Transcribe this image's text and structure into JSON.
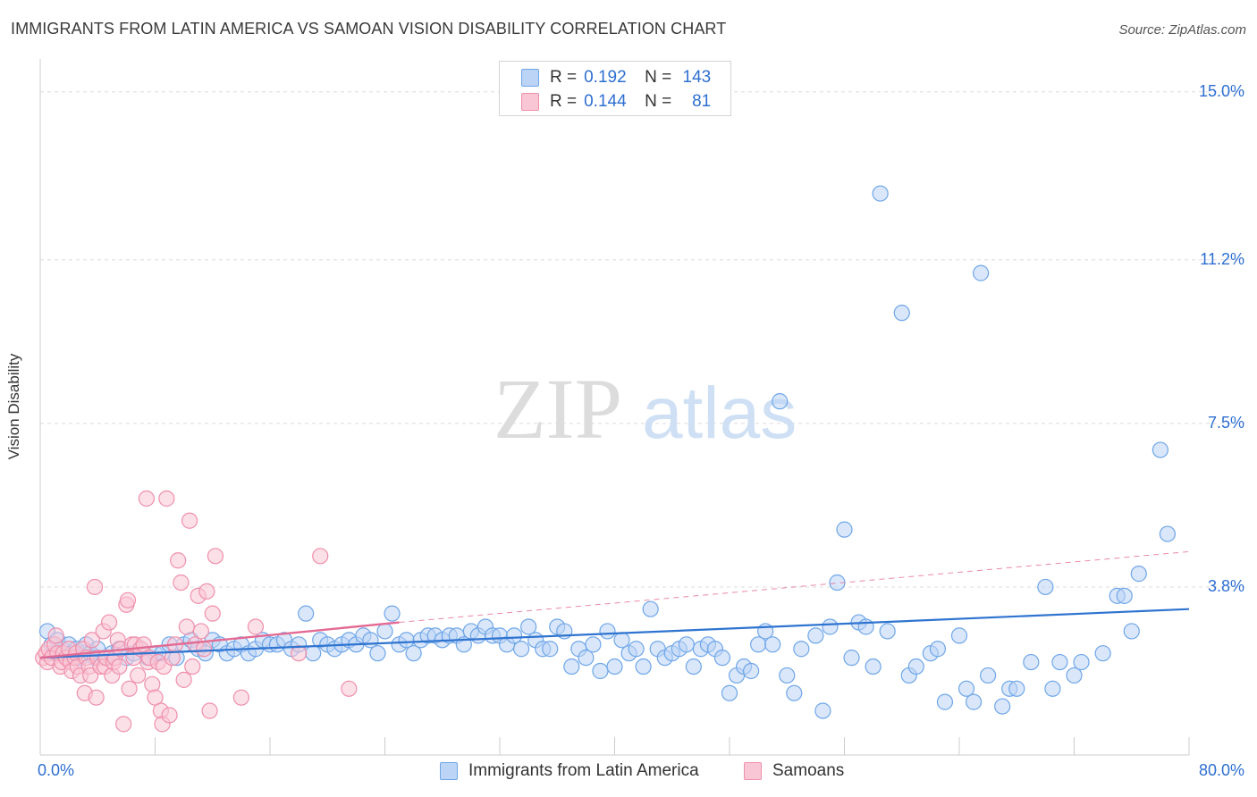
{
  "title": "IMMIGRANTS FROM LATIN AMERICA VS SAMOAN VISION DISABILITY CORRELATION CHART",
  "source": "Source: ZipAtlas.com",
  "watermark": {
    "zip": "ZIP",
    "atlas": "atlas"
  },
  "legend": {
    "rows": [
      {
        "r_label": "R = ",
        "r_value": "0.192",
        "n_label": "N = ",
        "n_value": "143",
        "color": "#6ea6e8",
        "fill": "#bcd4f5"
      },
      {
        "r_label": "R = ",
        "r_value": "0.144",
        "n_label": "N = ",
        "n_value": "81",
        "color": "#ef8fab",
        "fill": "#f9c6d6"
      }
    ]
  },
  "bottom_legend": [
    {
      "label": "Immigrants from Latin America",
      "color": "#6ea6e8",
      "fill": "#bcd4f5"
    },
    {
      "label": "Samoans",
      "color": "#ef8fab",
      "fill": "#f9c6d6"
    }
  ],
  "chart_data": {
    "type": "scatter",
    "title": "IMMIGRANTS FROM LATIN AMERICA VS SAMOAN VISION DISABILITY CORRELATION CHART",
    "xlabel": "",
    "ylabel": "Vision Disability",
    "x_unit": "%",
    "xlim": [
      0,
      80
    ],
    "ylim": [
      0,
      15.5
    ],
    "x_tick_labels": [
      "0.0%",
      "80.0%"
    ],
    "y_ticks": [
      3.8,
      7.5,
      11.2,
      15.0
    ],
    "y_tick_labels": [
      "3.8%",
      "7.5%",
      "11.2%",
      "15.0%"
    ],
    "grid": true,
    "legend_position": "top-center",
    "series": [
      {
        "name": "Immigrants from Latin America",
        "color": "#6ea6e8",
        "trend": {
          "x": [
            0,
            80
          ],
          "y": [
            2.2,
            3.3
          ],
          "style": "solid",
          "color": "#2f74d0"
        },
        "points": [
          [
            0.5,
            2.8
          ],
          [
            0.8,
            2.5
          ],
          [
            1.0,
            2.3
          ],
          [
            1.2,
            2.6
          ],
          [
            1.5,
            2.4
          ],
          [
            1.8,
            2.2
          ],
          [
            2.0,
            2.5
          ],
          [
            2.2,
            2.3
          ],
          [
            2.5,
            2.4
          ],
          [
            2.8,
            2.2
          ],
          [
            3.0,
            2.3
          ],
          [
            3.2,
            2.5
          ],
          [
            3.5,
            2.3
          ],
          [
            3.8,
            2.2
          ],
          [
            4.0,
            2.4
          ],
          [
            4.5,
            2.2
          ],
          [
            5.0,
            2.3
          ],
          [
            5.5,
            2.4
          ],
          [
            6.0,
            2.2
          ],
          [
            6.5,
            2.3
          ],
          [
            7.0,
            2.4
          ],
          [
            7.5,
            2.2
          ],
          [
            8.0,
            2.3
          ],
          [
            8.5,
            2.3
          ],
          [
            9.0,
            2.5
          ],
          [
            9.5,
            2.2
          ],
          [
            10.0,
            2.5
          ],
          [
            10.5,
            2.6
          ],
          [
            11.0,
            2.4
          ],
          [
            11.5,
            2.3
          ],
          [
            12.0,
            2.6
          ],
          [
            12.5,
            2.5
          ],
          [
            13.0,
            2.3
          ],
          [
            13.5,
            2.4
          ],
          [
            14.0,
            2.5
          ],
          [
            14.5,
            2.3
          ],
          [
            15.0,
            2.4
          ],
          [
            15.5,
            2.6
          ],
          [
            16.0,
            2.5
          ],
          [
            16.5,
            2.5
          ],
          [
            17.0,
            2.6
          ],
          [
            17.5,
            2.4
          ],
          [
            18.0,
            2.5
          ],
          [
            18.5,
            3.2
          ],
          [
            19.0,
            2.3
          ],
          [
            19.5,
            2.6
          ],
          [
            20.0,
            2.5
          ],
          [
            20.5,
            2.4
          ],
          [
            21.0,
            2.5
          ],
          [
            21.5,
            2.6
          ],
          [
            22.0,
            2.5
          ],
          [
            22.5,
            2.7
          ],
          [
            23.0,
            2.6
          ],
          [
            23.5,
            2.3
          ],
          [
            24.0,
            2.8
          ],
          [
            24.5,
            3.2
          ],
          [
            25.0,
            2.5
          ],
          [
            25.5,
            2.6
          ],
          [
            26.0,
            2.3
          ],
          [
            26.5,
            2.6
          ],
          [
            27.0,
            2.7
          ],
          [
            27.5,
            2.7
          ],
          [
            28.0,
            2.6
          ],
          [
            28.5,
            2.7
          ],
          [
            29.0,
            2.7
          ],
          [
            29.5,
            2.5
          ],
          [
            30.0,
            2.8
          ],
          [
            30.5,
            2.7
          ],
          [
            31.0,
            2.9
          ],
          [
            31.5,
            2.7
          ],
          [
            32.0,
            2.7
          ],
          [
            32.5,
            2.5
          ],
          [
            33.0,
            2.7
          ],
          [
            33.5,
            2.4
          ],
          [
            34.0,
            2.9
          ],
          [
            34.5,
            2.6
          ],
          [
            35.0,
            2.4
          ],
          [
            35.5,
            2.4
          ],
          [
            36.0,
            2.9
          ],
          [
            36.5,
            2.8
          ],
          [
            37.0,
            2.0
          ],
          [
            37.5,
            2.4
          ],
          [
            38.0,
            2.2
          ],
          [
            38.5,
            2.5
          ],
          [
            39.0,
            1.9
          ],
          [
            39.5,
            2.8
          ],
          [
            40.0,
            2.0
          ],
          [
            40.5,
            2.6
          ],
          [
            41.0,
            2.3
          ],
          [
            41.5,
            2.4
          ],
          [
            42.0,
            2.0
          ],
          [
            42.5,
            3.3
          ],
          [
            43.0,
            2.4
          ],
          [
            43.5,
            2.2
          ],
          [
            44.0,
            2.3
          ],
          [
            44.5,
            2.4
          ],
          [
            45.0,
            2.5
          ],
          [
            45.5,
            2.0
          ],
          [
            46.0,
            2.4
          ],
          [
            46.5,
            2.5
          ],
          [
            47.0,
            2.4
          ],
          [
            47.5,
            2.2
          ],
          [
            48.0,
            1.4
          ],
          [
            48.5,
            1.8
          ],
          [
            49.0,
            2.0
          ],
          [
            49.5,
            1.9
          ],
          [
            50.0,
            2.5
          ],
          [
            50.5,
            2.8
          ],
          [
            51.0,
            2.5
          ],
          [
            51.5,
            8.0
          ],
          [
            52.0,
            1.8
          ],
          [
            52.5,
            1.4
          ],
          [
            53.0,
            2.4
          ],
          [
            54.0,
            2.7
          ],
          [
            54.5,
            1.0
          ],
          [
            55.0,
            2.9
          ],
          [
            55.5,
            3.9
          ],
          [
            56.0,
            5.1
          ],
          [
            56.5,
            2.2
          ],
          [
            57.0,
            3.0
          ],
          [
            57.5,
            2.9
          ],
          [
            58.0,
            2.0
          ],
          [
            58.5,
            12.7
          ],
          [
            59.0,
            2.8
          ],
          [
            60.0,
            10.0
          ],
          [
            60.5,
            1.8
          ],
          [
            61.0,
            2.0
          ],
          [
            62.0,
            2.3
          ],
          [
            62.5,
            2.4
          ],
          [
            63.0,
            1.2
          ],
          [
            64.0,
            2.7
          ],
          [
            64.5,
            1.5
          ],
          [
            65.0,
            1.2
          ],
          [
            65.5,
            10.9
          ],
          [
            66.0,
            1.8
          ],
          [
            67.0,
            1.1
          ],
          [
            67.5,
            1.5
          ],
          [
            68.0,
            1.5
          ],
          [
            69.0,
            2.1
          ],
          [
            70.0,
            3.8
          ],
          [
            70.5,
            1.5
          ],
          [
            71.0,
            2.1
          ],
          [
            72.0,
            1.8
          ],
          [
            72.5,
            2.1
          ],
          [
            74.0,
            2.3
          ],
          [
            75.0,
            3.6
          ],
          [
            75.5,
            3.6
          ],
          [
            76.0,
            2.8
          ],
          [
            76.5,
            4.1
          ],
          [
            78.0,
            6.9
          ],
          [
            78.5,
            5.0
          ]
        ]
      },
      {
        "name": "Samoans",
        "color": "#ef8fab",
        "trend": {
          "x": [
            0,
            25
          ],
          "y": [
            2.2,
            3.0
          ],
          "style": "solid",
          "color": "#e36a93",
          "ext": {
            "x": [
              25,
              80
            ],
            "y": [
              3.0,
              4.6
            ],
            "style": "dashed"
          }
        },
        "points": [
          [
            0.2,
            2.2
          ],
          [
            0.4,
            2.3
          ],
          [
            0.5,
            2.1
          ],
          [
            0.6,
            2.4
          ],
          [
            0.8,
            2.2
          ],
          [
            1.0,
            2.5
          ],
          [
            1.1,
            2.7
          ],
          [
            1.2,
            2.3
          ],
          [
            1.4,
            2.0
          ],
          [
            1.5,
            2.1
          ],
          [
            1.6,
            2.3
          ],
          [
            1.8,
            2.2
          ],
          [
            2.0,
            2.4
          ],
          [
            2.1,
            2.1
          ],
          [
            2.2,
            1.9
          ],
          [
            2.4,
            2.2
          ],
          [
            2.5,
            2.3
          ],
          [
            2.6,
            2.0
          ],
          [
            2.8,
            1.8
          ],
          [
            3.0,
            2.4
          ],
          [
            3.1,
            1.4
          ],
          [
            3.2,
            2.2
          ],
          [
            3.4,
            2.0
          ],
          [
            3.5,
            1.8
          ],
          [
            3.6,
            2.6
          ],
          [
            3.8,
            3.8
          ],
          [
            3.9,
            1.3
          ],
          [
            4.0,
            2.2
          ],
          [
            4.2,
            2.0
          ],
          [
            4.4,
            2.8
          ],
          [
            4.5,
            2.0
          ],
          [
            4.6,
            2.2
          ],
          [
            4.8,
            3.0
          ],
          [
            5.0,
            1.8
          ],
          [
            5.1,
            2.1
          ],
          [
            5.2,
            2.2
          ],
          [
            5.4,
            2.6
          ],
          [
            5.5,
            2.0
          ],
          [
            5.6,
            2.4
          ],
          [
            5.8,
            0.7
          ],
          [
            6.0,
            3.4
          ],
          [
            6.1,
            3.5
          ],
          [
            6.2,
            1.5
          ],
          [
            6.4,
            2.5
          ],
          [
            6.5,
            2.2
          ],
          [
            6.6,
            2.5
          ],
          [
            6.8,
            1.8
          ],
          [
            7.0,
            2.4
          ],
          [
            7.2,
            2.5
          ],
          [
            7.4,
            5.8
          ],
          [
            7.5,
            2.1
          ],
          [
            7.6,
            2.2
          ],
          [
            7.8,
            1.6
          ],
          [
            8.0,
            1.3
          ],
          [
            8.2,
            2.1
          ],
          [
            8.4,
            1.0
          ],
          [
            8.5,
            0.7
          ],
          [
            8.6,
            2.0
          ],
          [
            8.8,
            5.8
          ],
          [
            9.0,
            0.9
          ],
          [
            9.2,
            2.2
          ],
          [
            9.4,
            2.5
          ],
          [
            9.6,
            4.4
          ],
          [
            9.8,
            3.9
          ],
          [
            10.0,
            1.7
          ],
          [
            10.2,
            2.9
          ],
          [
            10.4,
            5.3
          ],
          [
            10.6,
            2.0
          ],
          [
            10.8,
            2.5
          ],
          [
            11.0,
            3.6
          ],
          [
            11.2,
            2.8
          ],
          [
            11.4,
            2.4
          ],
          [
            11.6,
            3.7
          ],
          [
            11.8,
            1.0
          ],
          [
            12.0,
            3.2
          ],
          [
            12.2,
            4.5
          ],
          [
            14.0,
            1.3
          ],
          [
            15.0,
            2.9
          ],
          [
            18.0,
            2.3
          ],
          [
            19.5,
            4.5
          ],
          [
            21.5,
            1.5
          ]
        ]
      }
    ]
  }
}
